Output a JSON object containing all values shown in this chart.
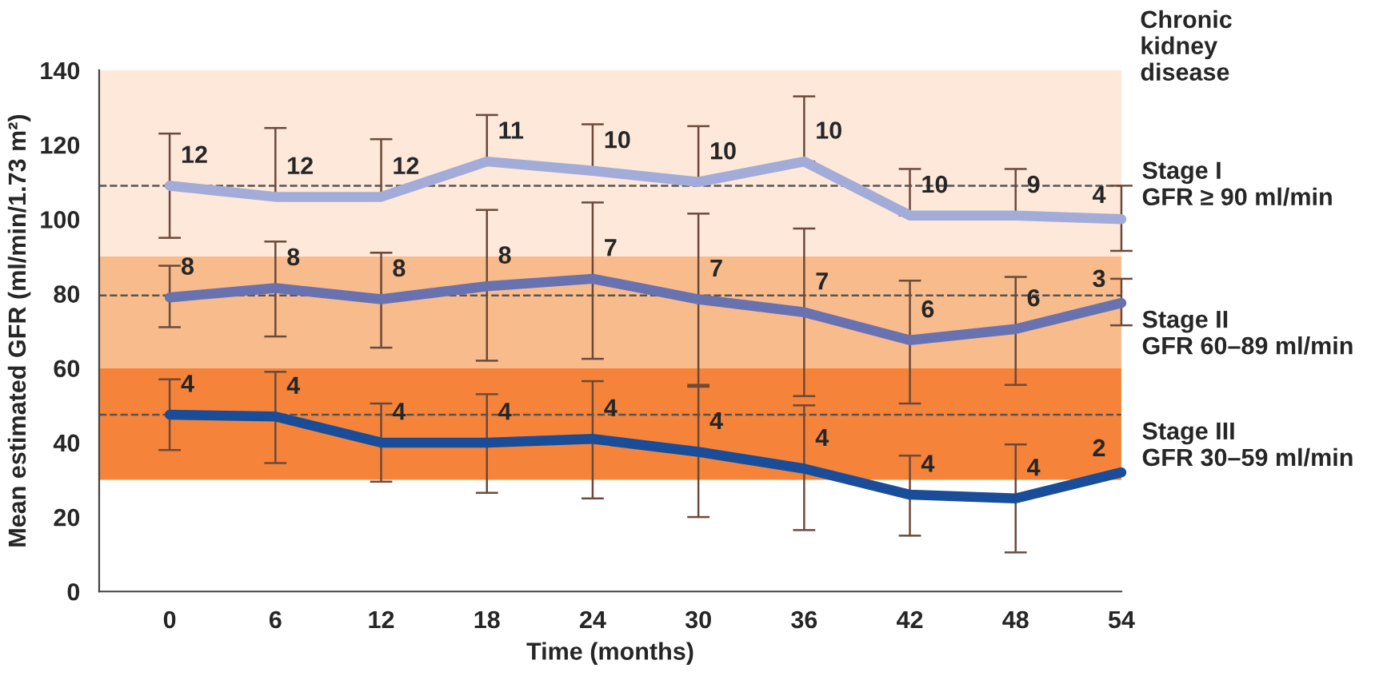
{
  "chart_data": {
    "type": "line",
    "xlabel": "Time (months)",
    "ylabel": "Mean estimated GFR (ml/min/1.73 m²)",
    "x": [
      0,
      6,
      12,
      18,
      24,
      30,
      36,
      42,
      48,
      54
    ],
    "xlim": [
      -4,
      54
    ],
    "xticks": [
      0,
      6,
      12,
      18,
      24,
      30,
      36,
      42,
      48,
      54
    ],
    "ylim": [
      0,
      140
    ],
    "yticks": [
      0,
      20,
      40,
      60,
      80,
      100,
      120,
      140
    ],
    "grid": false,
    "legend": false,
    "marker": "none",
    "line_style": "solid",
    "series": [
      {
        "color": "#a3acd8",
        "values": [
          109,
          106,
          106,
          115.5,
          113,
          110,
          115.5,
          101,
          101,
          100
        ],
        "errors": [
          [
            95,
            123
          ],
          [
            106,
            124.5
          ],
          [
            106,
            121.5
          ],
          [
            115.5,
            128
          ],
          [
            113,
            125.5
          ],
          [
            110,
            125
          ],
          [
            115.5,
            133
          ],
          [
            101,
            113.5
          ],
          [
            101,
            113.5
          ],
          [
            91.5,
            109
          ]
        ]
      },
      {
        "color": "#6872b0",
        "values": [
          79,
          81.5,
          78.5,
          82,
          84,
          78.5,
          75,
          67.5,
          70.5,
          77.5
        ],
        "errors": [
          [
            71,
            87.5
          ],
          [
            68.5,
            94
          ],
          [
            65.5,
            91
          ],
          [
            62,
            102.5
          ],
          [
            62.5,
            104.5
          ],
          [
            55.5,
            101.5
          ],
          [
            52.5,
            97.5
          ],
          [
            50.5,
            83.5
          ],
          [
            55.5,
            84.5
          ],
          [
            71.5,
            84
          ]
        ]
      },
      {
        "color": "#1a4d99",
        "values": [
          47.5,
          47,
          40,
          40,
          41,
          37.5,
          33,
          26,
          25,
          32
        ],
        "errors": [
          [
            38,
            57
          ],
          [
            34.5,
            59
          ],
          [
            29.5,
            50.5
          ],
          [
            26.5,
            53
          ],
          [
            25,
            56.5
          ],
          [
            20,
            55
          ],
          [
            16.5,
            50
          ],
          [
            15,
            36.5
          ],
          [
            10.5,
            39.5
          ],
          null
        ]
      }
    ],
    "bands": [
      {
        "axis": "y",
        "from": 90,
        "to": 140,
        "color": "#fde8da",
        "label": "Stage I\nGFR ≥ 90 ml/min"
      },
      {
        "axis": "y",
        "from": 60,
        "to": 90,
        "color": "#f8bb8c",
        "label": "Stage II\nGFR 60–89 ml/min"
      },
      {
        "axis": "y",
        "from": 30,
        "to": 60,
        "color": "#f5843a",
        "label": "Stage III\nGFR 30–59 ml/min"
      }
    ],
    "ref_lines": [
      {
        "axis": "y",
        "value": 109,
        "line_style": "dashed",
        "color": "#555555"
      },
      {
        "axis": "y",
        "value": 79.5,
        "line_style": "dashed",
        "color": "#555555"
      },
      {
        "axis": "y",
        "value": 47.5,
        "line_style": "dashed",
        "color": "#555555"
      }
    ],
    "annotations": [
      "Chronic\nkidney\ndisease",
      {
        "text": "12",
        "x": 0,
        "y": 109
      },
      {
        "text": "12",
        "x": 6,
        "y": 106
      },
      {
        "text": "12",
        "x": 12,
        "y": 106
      },
      {
        "text": "11",
        "x": 18,
        "y": 115.5
      },
      {
        "text": "10",
        "x": 24,
        "y": 113
      },
      {
        "text": "10",
        "x": 30,
        "y": 110
      },
      {
        "text": "10",
        "x": 36,
        "y": 115.5
      },
      {
        "text": "10",
        "x": 42,
        "y": 101
      },
      {
        "text": "9",
        "x": 48,
        "y": 101
      },
      {
        "text": "4",
        "x": 54,
        "y": 100
      },
      {
        "text": "8",
        "x": 0,
        "y": 79
      },
      {
        "text": "8",
        "x": 6,
        "y": 81.5
      },
      {
        "text": "8",
        "x": 12,
        "y": 78.5
      },
      {
        "text": "8",
        "x": 18,
        "y": 82
      },
      {
        "text": "7",
        "x": 24,
        "y": 84
      },
      {
        "text": "7",
        "x": 30,
        "y": 78.5
      },
      {
        "text": "7",
        "x": 36,
        "y": 75
      },
      {
        "text": "6",
        "x": 42,
        "y": 67.5
      },
      {
        "text": "6",
        "x": 48,
        "y": 70.5
      },
      {
        "text": "3",
        "x": 54,
        "y": 77.5
      },
      {
        "text": "4",
        "x": 0,
        "y": 47.5
      },
      {
        "text": "4",
        "x": 6,
        "y": 47
      },
      {
        "text": "4",
        "x": 12,
        "y": 40
      },
      {
        "text": "4",
        "x": 18,
        "y": 40
      },
      {
        "text": "4",
        "x": 24,
        "y": 41
      },
      {
        "text": "4",
        "x": 30,
        "y": 37.5
      },
      {
        "text": "4",
        "x": 36,
        "y": 33
      },
      {
        "text": "4",
        "x": 42,
        "y": 26
      },
      {
        "text": "4",
        "x": 48,
        "y": 25
      },
      {
        "text": "2",
        "x": 54,
        "y": 32
      }
    ]
  }
}
